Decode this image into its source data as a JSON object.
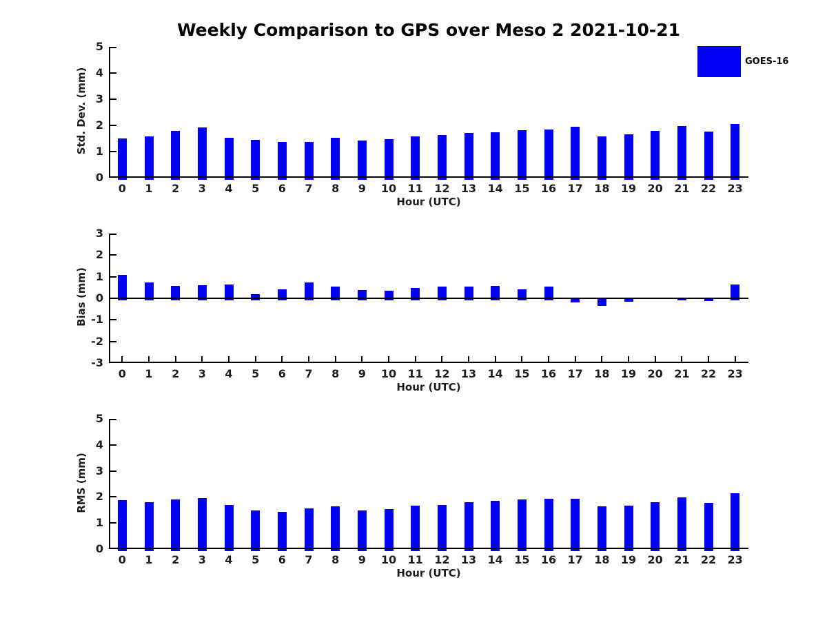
{
  "figure": {
    "title": "Weekly Comparison to GPS over Meso 2 2021-10-21"
  },
  "legend": {
    "label": "GOES-16",
    "swatch_color": "#0101f8",
    "position": "top-right"
  },
  "colors": {
    "bar": "#0101f8",
    "axis": "#000000",
    "tick_text": "#1d1d1d",
    "background": "#ffffff"
  },
  "chart_data": [
    {
      "type": "bar",
      "title": "",
      "ylabel": "Std. Dev. (mm)",
      "xlabel": "Hour (UTC)",
      "series_name": "GOES-16",
      "categories": [
        "0",
        "1",
        "2",
        "3",
        "4",
        "5",
        "6",
        "7",
        "8",
        "9",
        "10",
        "11",
        "12",
        "13",
        "14",
        "15",
        "16",
        "17",
        "18",
        "19",
        "20",
        "21",
        "22",
        "23"
      ],
      "values": [
        1.51,
        1.58,
        1.79,
        1.91,
        1.53,
        1.46,
        1.38,
        1.38,
        1.53,
        1.43,
        1.48,
        1.58,
        1.62,
        1.7,
        1.73,
        1.82,
        1.85,
        1.94,
        1.57,
        1.65,
        1.8,
        1.98,
        1.76,
        2.04
      ],
      "ylim": [
        0,
        5
      ],
      "yticks": [
        0,
        1,
        2,
        3,
        4,
        5
      ],
      "grid": false
    },
    {
      "type": "bar",
      "title": "",
      "ylabel": "Bias (mm)",
      "xlabel": "Hour (UTC)",
      "series_name": "GOES-16",
      "categories": [
        "0",
        "1",
        "2",
        "3",
        "4",
        "5",
        "6",
        "7",
        "8",
        "9",
        "10",
        "11",
        "12",
        "13",
        "14",
        "15",
        "16",
        "17",
        "18",
        "19",
        "20",
        "21",
        "22",
        "23"
      ],
      "values": [
        1.08,
        0.74,
        0.57,
        0.6,
        0.64,
        0.19,
        0.4,
        0.72,
        0.53,
        0.39,
        0.36,
        0.48,
        0.53,
        0.54,
        0.57,
        0.42,
        0.53,
        -0.18,
        -0.34,
        -0.17,
        0.0,
        -0.09,
        -0.13,
        0.63
      ],
      "ylim": [
        -3,
        3
      ],
      "yticks": [
        -3,
        -2,
        -1,
        0,
        1,
        2,
        3
      ],
      "grid": false
    },
    {
      "type": "bar",
      "title": "",
      "ylabel": "RMS (mm)",
      "xlabel": "Hour (UTC)",
      "series_name": "GOES-16",
      "categories": [
        "0",
        "1",
        "2",
        "3",
        "4",
        "5",
        "6",
        "7",
        "8",
        "9",
        "10",
        "11",
        "12",
        "13",
        "14",
        "15",
        "16",
        "17",
        "18",
        "19",
        "20",
        "21",
        "22",
        "23"
      ],
      "values": [
        1.88,
        1.8,
        1.91,
        1.97,
        1.7,
        1.49,
        1.44,
        1.57,
        1.64,
        1.49,
        1.54,
        1.67,
        1.7,
        1.8,
        1.84,
        1.9,
        1.94,
        1.94,
        1.64,
        1.67,
        1.81,
        1.98,
        1.77,
        2.13
      ],
      "ylim": [
        0,
        5
      ],
      "yticks": [
        0,
        1,
        2,
        3,
        4,
        5
      ],
      "grid": false
    }
  ]
}
